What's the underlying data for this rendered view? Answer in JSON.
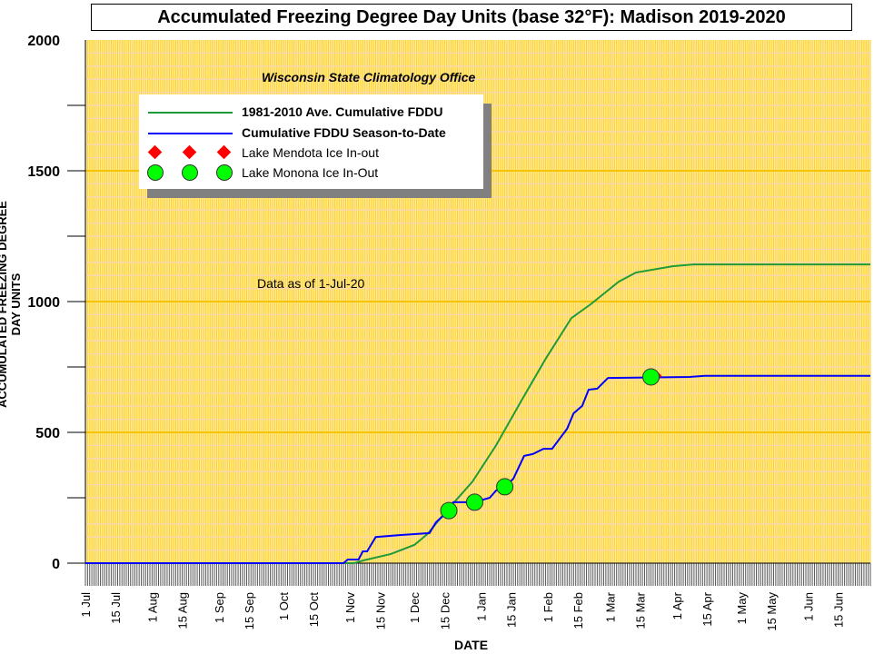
{
  "chart_data": {
    "type": "line",
    "title": "Accumulated Freezing Degree Day Units (base 32°F): Madison 2019-2020",
    "subtitle": "Wisconsin State Climatology Office",
    "annotation": "Data as of 1-Jul-20",
    "xlabel": "DATE",
    "ylabel": "ACCUMULATED FREEZING DEGREE DAY UNITS",
    "x_units": "days since 1 Jul 2019",
    "xlim": [
      0,
      365
    ],
    "ylim": [
      0,
      2000
    ],
    "y_ticks": [
      0,
      500,
      1000,
      1500,
      2000
    ],
    "x_ticks": [
      {
        "day": 0,
        "label": "1 Jul"
      },
      {
        "day": 14,
        "label": "15 Jul"
      },
      {
        "day": 31,
        "label": "1 Aug"
      },
      {
        "day": 45,
        "label": "15 Aug"
      },
      {
        "day": 62,
        "label": "1 Sep"
      },
      {
        "day": 76,
        "label": "15 Sep"
      },
      {
        "day": 92,
        "label": "1 Oct"
      },
      {
        "day": 106,
        "label": "15 Oct"
      },
      {
        "day": 123,
        "label": "1 Nov"
      },
      {
        "day": 137,
        "label": "15 Nov"
      },
      {
        "day": 153,
        "label": "1 Dec"
      },
      {
        "day": 167,
        "label": "15 Dec"
      },
      {
        "day": 184,
        "label": "1 Jan"
      },
      {
        "day": 198,
        "label": "15 Jan"
      },
      {
        "day": 215,
        "label": "1 Feb"
      },
      {
        "day": 229,
        "label": "15 Feb"
      },
      {
        "day": 244,
        "label": "1 Mar"
      },
      {
        "day": 258,
        "label": "15 Mar"
      },
      {
        "day": 275,
        "label": "1 Apr"
      },
      {
        "day": 289,
        "label": "15 Apr"
      },
      {
        "day": 305,
        "label": "1 May"
      },
      {
        "day": 319,
        "label": "15 May"
      },
      {
        "day": 336,
        "label": "1 Jun"
      },
      {
        "day": 350,
        "label": "15 Jun"
      }
    ],
    "grid": true,
    "legend_position": "top-left",
    "series": [
      {
        "name": "1981-2010 Ave. Cumulative FDDU",
        "color": "#1f9a3a",
        "points": [
          [
            0,
            0
          ],
          [
            125,
            0
          ],
          [
            129,
            10
          ],
          [
            142,
            35
          ],
          [
            153,
            70
          ],
          [
            159,
            111
          ],
          [
            167,
            191
          ],
          [
            180,
            312
          ],
          [
            191,
            451
          ],
          [
            203,
            625
          ],
          [
            214,
            781
          ],
          [
            226,
            937
          ],
          [
            235,
            990
          ],
          [
            248,
            1076
          ],
          [
            256,
            1111
          ],
          [
            273,
            1135
          ],
          [
            283,
            1142
          ],
          [
            365,
            1142
          ]
        ]
      },
      {
        "name": "Cumulative FDDU Season-to-Date",
        "color": "#0000ff",
        "points": [
          [
            0,
            0
          ],
          [
            120,
            0
          ],
          [
            122,
            14
          ],
          [
            127,
            14
          ],
          [
            129,
            45
          ],
          [
            131,
            45
          ],
          [
            135,
            100
          ],
          [
            146,
            107
          ],
          [
            160,
            115
          ],
          [
            163,
            156
          ],
          [
            169,
            201
          ],
          [
            171,
            233
          ],
          [
            181,
            233
          ],
          [
            188,
            250
          ],
          [
            191,
            278
          ],
          [
            195,
            292
          ],
          [
            199,
            323
          ],
          [
            204,
            410
          ],
          [
            208,
            417
          ],
          [
            213,
            437
          ],
          [
            217,
            437
          ],
          [
            224,
            514
          ],
          [
            227,
            573
          ],
          [
            231,
            601
          ],
          [
            234,
            663
          ],
          [
            238,
            667
          ],
          [
            243,
            708
          ],
          [
            281,
            712
          ],
          [
            288,
            716
          ],
          [
            365,
            716
          ]
        ]
      }
    ],
    "markers": [
      {
        "name": "Lake Mendota Ice In-out",
        "shape": "diamond",
        "color": "#ff0000",
        "points": [
          [
            265,
            716
          ]
        ]
      },
      {
        "name": "Lake Monona Ice In-Out",
        "shape": "circle",
        "color": "#00ff00",
        "points": [
          [
            169,
            201
          ],
          [
            181,
            233
          ],
          [
            195,
            292
          ],
          [
            263,
            712
          ]
        ]
      }
    ]
  }
}
